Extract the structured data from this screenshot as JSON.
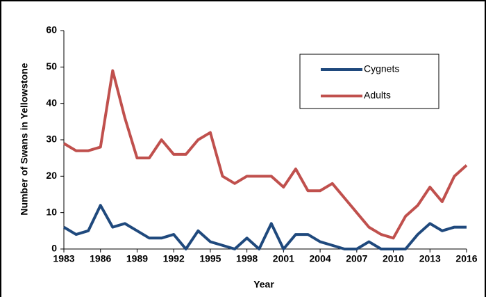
{
  "chart_data": {
    "type": "line",
    "x_label": "Year",
    "y_label": "Number of Swans in Yellowstone",
    "x": [
      1983,
      1984,
      1985,
      1986,
      1987,
      1988,
      1989,
      1990,
      1991,
      1992,
      1993,
      1994,
      1995,
      1996,
      1997,
      1998,
      1999,
      2000,
      2001,
      2002,
      2003,
      2004,
      2005,
      2006,
      2007,
      2008,
      2009,
      2010,
      2011,
      2012,
      2013,
      2014,
      2015,
      2016
    ],
    "series": [
      {
        "name": "Cygnets",
        "color": "#1f497d",
        "values": [
          6,
          4,
          5,
          12,
          6,
          7,
          5,
          3,
          3,
          4,
          0,
          5,
          2,
          1,
          0,
          3,
          0,
          7,
          0,
          4,
          4,
          2,
          1,
          0,
          0,
          2,
          0,
          0,
          0,
          4,
          7,
          5,
          6,
          6
        ]
      },
      {
        "name": "Adults",
        "color": "#c0504d",
        "values": [
          29,
          27,
          27,
          28,
          49,
          36,
          25,
          25,
          30,
          26,
          26,
          30,
          32,
          20,
          18,
          20,
          20,
          20,
          17,
          22,
          16,
          16,
          18,
          14,
          10,
          6,
          4,
          3,
          9,
          12,
          17,
          13,
          20,
          23
        ]
      }
    ],
    "xlim": [
      1983,
      2016
    ],
    "xticks": [
      1983,
      1986,
      1989,
      1992,
      1995,
      1998,
      2001,
      2004,
      2007,
      2010,
      2013,
      2016
    ],
    "ylim": [
      0,
      60
    ],
    "yticks": [
      0,
      10,
      20,
      30,
      40,
      50,
      60
    ],
    "legend": "upper-right"
  }
}
